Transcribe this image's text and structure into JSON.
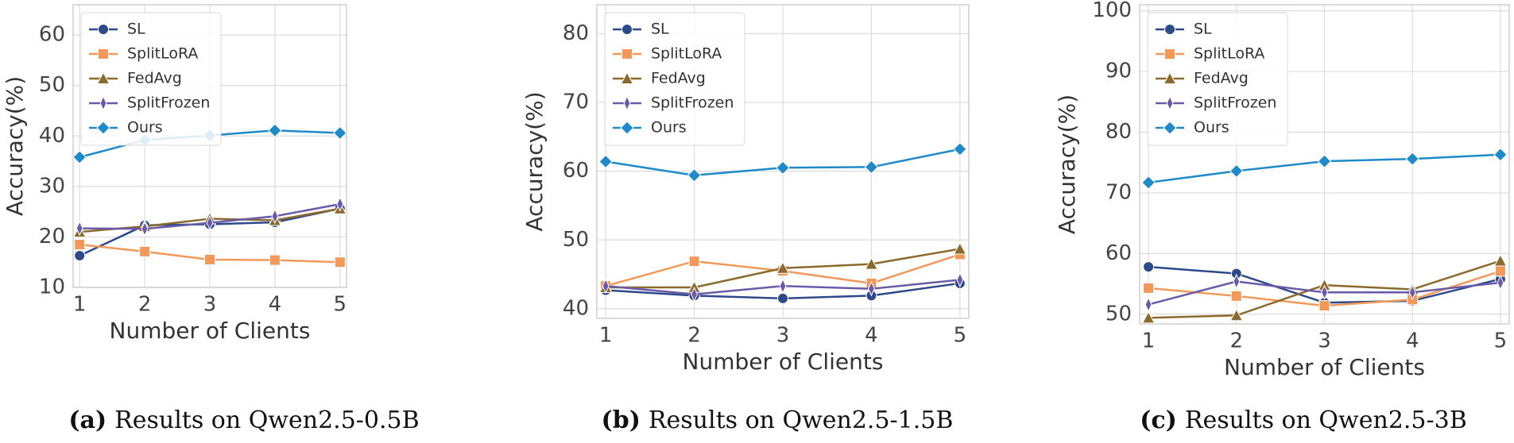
{
  "chart_data": [
    {
      "type": "line",
      "caption_tag": "(a)",
      "caption": "Results on Qwen2.5-0.5B",
      "x_label": "Number of Clients",
      "y_label": "Accuracy(%)",
      "x": [
        1,
        2,
        3,
        4,
        5
      ],
      "xlim": [
        0.9,
        5.1
      ],
      "xticks": [
        1,
        2,
        3,
        4,
        5
      ],
      "ylim": [
        10,
        66
      ],
      "yticks": [
        10,
        20,
        30,
        40,
        50,
        60
      ],
      "grid": true,
      "legend": "upper left",
      "series": [
        {
          "name": "SL",
          "color": "#2c4a8a",
          "marker": "circle",
          "values": [
            16.3,
            22.3,
            22.5,
            22.9,
            25.6
          ]
        },
        {
          "name": "SplitLoRA",
          "color": "#f2995a",
          "marker": "square",
          "values": [
            18.5,
            17.1,
            15.5,
            15.4,
            15.0
          ]
        },
        {
          "name": "FedAvg",
          "color": "#8c6a2e",
          "marker": "triangle",
          "values": [
            21.0,
            22.1,
            23.6,
            23.3,
            25.6
          ]
        },
        {
          "name": "SplitFrozen",
          "color": "#6b5aa8",
          "marker": "thin-diamond",
          "values": [
            21.7,
            21.6,
            22.8,
            24.1,
            26.5
          ]
        },
        {
          "name": "Ours",
          "color": "#1f8ac9",
          "marker": "diamond",
          "values": [
            35.8,
            39.2,
            40.1,
            41.1,
            40.6
          ]
        }
      ]
    },
    {
      "type": "line",
      "caption_tag": "(b)",
      "caption": "Results on Qwen2.5-1.5B",
      "x_label": "Number of Clients",
      "y_label": "Accuracy(%)",
      "x": [
        1,
        2,
        3,
        4,
        5
      ],
      "xlim": [
        0.9,
        5.1
      ],
      "xticks": [
        1,
        2,
        3,
        4,
        5
      ],
      "ylim": [
        38.6,
        84.2
      ],
      "yticks": [
        40,
        50,
        60,
        70,
        80
      ],
      "grid": true,
      "legend": "upper left",
      "series": [
        {
          "name": "SL",
          "color": "#2c4a8a",
          "marker": "circle",
          "values": [
            42.7,
            41.9,
            41.5,
            41.9,
            43.7
          ]
        },
        {
          "name": "SplitLoRA",
          "color": "#f2995a",
          "marker": "square",
          "values": [
            43.3,
            46.9,
            45.5,
            43.7,
            47.9
          ]
        },
        {
          "name": "FedAvg",
          "color": "#8c6a2e",
          "marker": "triangle",
          "values": [
            43.1,
            43.1,
            45.9,
            46.5,
            48.7
          ]
        },
        {
          "name": "SplitFrozen",
          "color": "#6b5aa8",
          "marker": "thin-diamond",
          "values": [
            43.3,
            42.1,
            43.3,
            42.9,
            44.2
          ]
        },
        {
          "name": "Ours",
          "color": "#1f8ac9",
          "marker": "diamond",
          "values": [
            61.4,
            59.4,
            60.5,
            60.6,
            63.2
          ]
        }
      ]
    },
    {
      "type": "line",
      "caption_tag": "(c)",
      "caption": "Results on Qwen2.5-3B",
      "x_label": "Number of Clients",
      "y_label": "Accuracy(%)",
      "x": [
        1,
        2,
        3,
        4,
        5
      ],
      "xlim": [
        0.9,
        5.1
      ],
      "xticks": [
        1,
        2,
        3,
        4,
        5
      ],
      "ylim": [
        48.4,
        101
      ],
      "yticks": [
        50,
        60,
        70,
        80,
        90,
        100
      ],
      "grid": true,
      "legend": "upper left",
      "series": [
        {
          "name": "SL",
          "color": "#2c4a8a",
          "marker": "circle",
          "values": [
            57.8,
            56.7,
            51.9,
            52.2,
            55.8
          ]
        },
        {
          "name": "SplitLoRA",
          "color": "#f2995a",
          "marker": "square",
          "values": [
            54.3,
            53.0,
            51.4,
            52.4,
            57.1
          ]
        },
        {
          "name": "FedAvg",
          "color": "#8c6a2e",
          "marker": "triangle",
          "values": [
            49.4,
            49.8,
            54.8,
            54.1,
            58.8
          ]
        },
        {
          "name": "SplitFrozen",
          "color": "#6b5aa8",
          "marker": "thin-diamond",
          "values": [
            51.6,
            55.4,
            53.6,
            53.6,
            55.2
          ]
        },
        {
          "name": "Ours",
          "color": "#1f8ac9",
          "marker": "diamond",
          "values": [
            71.7,
            73.6,
            75.2,
            75.6,
            76.3
          ]
        }
      ]
    }
  ]
}
